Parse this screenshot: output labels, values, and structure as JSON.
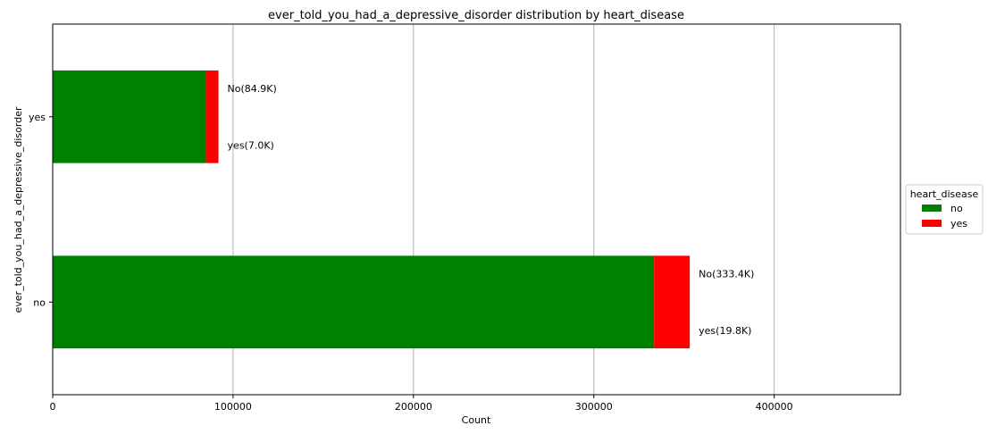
{
  "chart_data": {
    "type": "bar",
    "orientation": "horizontal",
    "stacked": true,
    "title": "ever_told_you_had_a_depressive_disorder distribution by heart_disease",
    "xlabel": "Count",
    "ylabel": "ever_told_you_had_a_depressive_disorder",
    "categories": [
      "no",
      "yes"
    ],
    "series": [
      {
        "name": "no",
        "color": "#008000",
        "values": [
          333400,
          84900
        ]
      },
      {
        "name": "yes",
        "color": "#ff0000",
        "values": [
          19800,
          7000
        ]
      }
    ],
    "xlim": [
      0,
      470000
    ],
    "xticks": [
      0,
      100000,
      200000,
      300000,
      400000
    ],
    "xtick_labels": [
      "0",
      "100000",
      "200000",
      "300000",
      "400000"
    ],
    "grid": {
      "x": true,
      "y": false
    },
    "annotations": [
      {
        "category": "no",
        "upper": "No(333.4K)",
        "lower": "yes(19.8K)"
      },
      {
        "category": "yes",
        "upper": "No(84.9K)",
        "lower": "yes(7.0K)"
      }
    ],
    "legend": {
      "title": "heart_disease",
      "placement": "outside-right",
      "entries": [
        "no",
        "yes"
      ]
    }
  }
}
